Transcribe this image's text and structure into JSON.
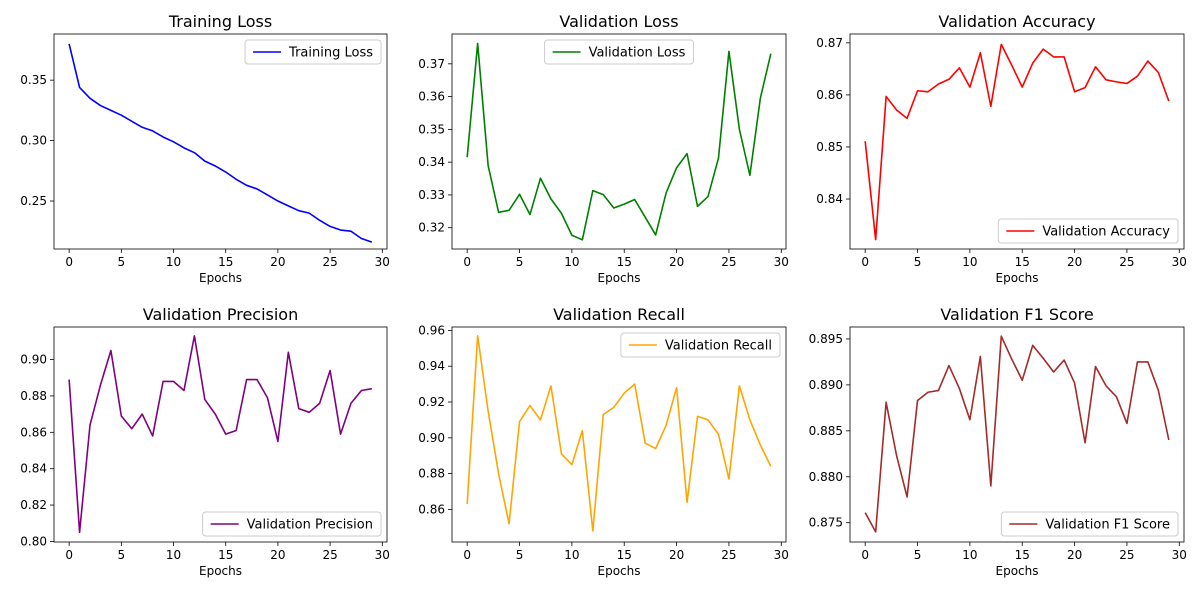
{
  "chart_data": [
    {
      "type": "line",
      "title": "Training Loss",
      "xlabel": "Epochs",
      "ylabel": "",
      "xlim": [
        -1.45,
        30.45
      ],
      "ylim": [
        0.2103,
        0.3882
      ],
      "xticks": [
        0,
        5,
        10,
        15,
        20,
        25,
        30
      ],
      "yticks": [
        0.25,
        0.3,
        0.35
      ],
      "tick_decimals": 2,
      "legend_loc": "upper right",
      "series": [
        {
          "name": "Training Loss",
          "color": "#0000ff",
          "x": [
            0,
            1,
            2,
            3,
            4,
            5,
            6,
            7,
            8,
            9,
            10,
            11,
            12,
            13,
            14,
            15,
            16,
            17,
            18,
            19,
            20,
            21,
            22,
            23,
            24,
            25,
            26,
            27,
            28,
            29
          ],
          "y": [
            0.38,
            0.344,
            0.335,
            0.329,
            0.325,
            0.321,
            0.316,
            0.311,
            0.308,
            0.303,
            0.299,
            0.294,
            0.29,
            0.283,
            0.279,
            0.274,
            0.268,
            0.263,
            0.26,
            0.255,
            0.25,
            0.246,
            0.242,
            0.24,
            0.234,
            0.229,
            0.226,
            0.225,
            0.219,
            0.216
          ]
        }
      ]
    },
    {
      "type": "line",
      "title": "Validation Loss",
      "xlabel": "Epochs",
      "ylabel": "",
      "xlim": [
        -1.45,
        30.45
      ],
      "ylim": [
        0.3135,
        0.3791
      ],
      "xticks": [
        0,
        5,
        10,
        15,
        20,
        25,
        30
      ],
      "yticks": [
        0.32,
        0.33,
        0.34,
        0.35,
        0.36,
        0.37
      ],
      "tick_decimals": 2,
      "legend_loc": "upper center",
      "series": [
        {
          "name": "Validation Loss",
          "color": "#008000",
          "x": [
            0,
            1,
            2,
            3,
            4,
            5,
            6,
            7,
            8,
            9,
            10,
            11,
            12,
            13,
            14,
            15,
            16,
            17,
            18,
            19,
            20,
            21,
            22,
            23,
            24,
            25,
            26,
            27,
            28,
            29
          ],
          "y": [
            0.3415,
            0.3762,
            0.339,
            0.3247,
            0.3253,
            0.3302,
            0.324,
            0.3351,
            0.3288,
            0.3244,
            0.3177,
            0.3163,
            0.3313,
            0.3301,
            0.326,
            0.3272,
            0.3286,
            0.3232,
            0.3178,
            0.3306,
            0.3383,
            0.3426,
            0.3265,
            0.3295,
            0.3412,
            0.3738,
            0.35,
            0.336,
            0.3595,
            0.3731
          ]
        }
      ]
    },
    {
      "type": "line",
      "title": "Validation Accuracy",
      "xlabel": "Epochs",
      "ylabel": "",
      "xlim": [
        -1.45,
        30.45
      ],
      "ylim": [
        0.8304,
        0.8717
      ],
      "xticks": [
        0,
        5,
        10,
        15,
        20,
        25,
        30
      ],
      "yticks": [
        0.84,
        0.85,
        0.86,
        0.87
      ],
      "tick_decimals": 2,
      "legend_loc": "lower right",
      "series": [
        {
          "name": "Validation Accuracy",
          "color": "#ff0000",
          "x": [
            0,
            1,
            2,
            3,
            4,
            5,
            6,
            7,
            8,
            9,
            10,
            11,
            12,
            13,
            14,
            15,
            16,
            17,
            18,
            19,
            20,
            21,
            22,
            23,
            24,
            25,
            26,
            27,
            28,
            29
          ],
          "y": [
            0.8511,
            0.8322,
            0.8597,
            0.8571,
            0.8555,
            0.8608,
            0.8606,
            0.8621,
            0.863,
            0.8652,
            0.8615,
            0.8681,
            0.8578,
            0.8697,
            0.8657,
            0.8615,
            0.8661,
            0.8688,
            0.8673,
            0.8673,
            0.8606,
            0.8614,
            0.8654,
            0.8629,
            0.8625,
            0.8622,
            0.8636,
            0.8665,
            0.8643,
            0.8588
          ]
        }
      ]
    },
    {
      "type": "line",
      "title": "Validation Precision",
      "xlabel": "Epochs",
      "ylabel": "",
      "xlim": [
        -1.45,
        30.45
      ],
      "ylim": [
        0.7997,
        0.9179
      ],
      "xticks": [
        0,
        5,
        10,
        15,
        20,
        25,
        30
      ],
      "yticks": [
        0.8,
        0.82,
        0.84,
        0.86,
        0.88,
        0.9
      ],
      "tick_decimals": 2,
      "legend_loc": "lower right",
      "series": [
        {
          "name": "Validation Precision",
          "color": "#800080",
          "x": [
            0,
            1,
            2,
            3,
            4,
            5,
            6,
            7,
            8,
            9,
            10,
            11,
            12,
            13,
            14,
            15,
            16,
            17,
            18,
            19,
            20,
            21,
            22,
            23,
            24,
            25,
            26,
            27,
            28,
            29
          ],
          "y": [
            0.889,
            0.805,
            0.864,
            0.886,
            0.905,
            0.869,
            0.862,
            0.87,
            0.858,
            0.888,
            0.888,
            0.883,
            0.913,
            0.878,
            0.87,
            0.859,
            0.861,
            0.889,
            0.889,
            0.879,
            0.855,
            0.904,
            0.873,
            0.871,
            0.876,
            0.894,
            0.859,
            0.876,
            0.883,
            0.884
          ]
        }
      ]
    },
    {
      "type": "line",
      "title": "Validation Recall",
      "xlabel": "Epochs",
      "ylabel": "",
      "xlim": [
        -1.45,
        30.45
      ],
      "ylim": [
        0.8418,
        0.9619
      ],
      "xticks": [
        0,
        5,
        10,
        15,
        20,
        25,
        30
      ],
      "yticks": [
        0.86,
        0.88,
        0.9,
        0.92,
        0.94,
        0.96
      ],
      "tick_decimals": 2,
      "legend_loc": "upper right",
      "series": [
        {
          "name": "Validation Recall",
          "color": "#ffa500",
          "x": [
            0,
            1,
            2,
            3,
            4,
            5,
            6,
            7,
            8,
            9,
            10,
            11,
            12,
            13,
            14,
            15,
            16,
            17,
            18,
            19,
            20,
            21,
            22,
            23,
            24,
            25,
            26,
            27,
            28,
            29
          ],
          "y": [
            0.863,
            0.957,
            0.915,
            0.88,
            0.852,
            0.909,
            0.918,
            0.91,
            0.929,
            0.891,
            0.885,
            0.904,
            0.848,
            0.913,
            0.917,
            0.925,
            0.93,
            0.897,
            0.894,
            0.907,
            0.928,
            0.864,
            0.912,
            0.91,
            0.902,
            0.877,
            0.929,
            0.91,
            0.896,
            0.884
          ]
        }
      ]
    },
    {
      "type": "line",
      "title": "Validation F1 Score",
      "xlabel": "Epochs",
      "ylabel": "",
      "xlim": [
        -1.45,
        30.45
      ],
      "ylim": [
        0.8729,
        0.8963
      ],
      "xticks": [
        0,
        5,
        10,
        15,
        20,
        25,
        30
      ],
      "yticks": [
        0.875,
        0.88,
        0.885,
        0.89,
        0.895
      ],
      "tick_decimals": 3,
      "legend_loc": "lower right",
      "series": [
        {
          "name": "Validation F1 Score",
          "color": "#a52a2a",
          "x": [
            0,
            1,
            2,
            3,
            4,
            5,
            6,
            7,
            8,
            9,
            10,
            11,
            12,
            13,
            14,
            15,
            16,
            17,
            18,
            19,
            20,
            21,
            22,
            23,
            24,
            25,
            26,
            27,
            28,
            29
          ],
          "y": [
            0.8761,
            0.874,
            0.8881,
            0.8823,
            0.8778,
            0.8883,
            0.8892,
            0.8894,
            0.8921,
            0.8896,
            0.8862,
            0.8931,
            0.879,
            0.8953,
            0.8928,
            0.8905,
            0.8943,
            0.8929,
            0.8914,
            0.8927,
            0.8902,
            0.8837,
            0.892,
            0.8899,
            0.8887,
            0.8858,
            0.8925,
            0.8925,
            0.8894,
            0.884
          ]
        }
      ]
    }
  ]
}
